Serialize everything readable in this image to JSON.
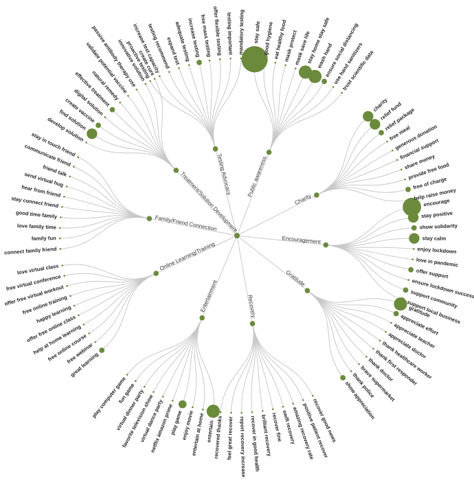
{
  "chart_data": {
    "type": "radial-tree",
    "root": "",
    "categories": [
      {
        "name": "Public awareness",
        "angle": -69,
        "children": [
          {
            "name": "stay safe",
            "value": 9
          },
          {
            "name": "good hygiene",
            "value": 1
          },
          {
            "name": "eat healthy food",
            "value": 0
          },
          {
            "name": "mask protect",
            "value": 0
          },
          {
            "name": "mask save life",
            "value": 0
          },
          {
            "name": "stay home stay safe",
            "value": 4
          },
          {
            "name": "wash hand",
            "value": 4
          },
          {
            "name": "ensure social distancing",
            "value": 1
          },
          {
            "name": "use hand sanitizers",
            "value": 0
          },
          {
            "name": "trust scientific data",
            "value": 0
          }
        ]
      },
      {
        "name": "Charity",
        "angle": -27,
        "children": [
          {
            "name": "charity",
            "value": 3
          },
          {
            "name": "relief fund",
            "value": 3
          },
          {
            "name": "relief package",
            "value": 1
          },
          {
            "name": "free meal",
            "value": 0
          },
          {
            "name": "generous donation",
            "value": 0
          },
          {
            "name": "financial support",
            "value": 0
          },
          {
            "name": "share money",
            "value": 0
          },
          {
            "name": "provide free food",
            "value": 0
          },
          {
            "name": "free of charge",
            "value": 1
          },
          {
            "name": "help raise money",
            "value": 0
          }
        ]
      },
      {
        "name": "Encouragement",
        "angle": 6,
        "children": [
          {
            "name": "encourage",
            "value": 6
          },
          {
            "name": "stay positive",
            "value": 3
          },
          {
            "name": "show solidarity",
            "value": 1
          },
          {
            "name": "stay calm",
            "value": 3
          },
          {
            "name": "enjoy lockdown",
            "value": 0
          },
          {
            "name": "love in pandemic",
            "value": 0
          },
          {
            "name": "offer support",
            "value": 1
          },
          {
            "name": "ensure lockdown success",
            "value": 0
          },
          {
            "name": "support community",
            "value": 1
          },
          {
            "name": "support local business",
            "value": 1
          }
        ]
      },
      {
        "name": "Gratitude",
        "angle": 38,
        "children": [
          {
            "name": "gratitude",
            "value": 4
          },
          {
            "name": "appreciate effort",
            "value": 1
          },
          {
            "name": "appreciate teacher",
            "value": 0
          },
          {
            "name": "appreciate doctor",
            "value": 0
          },
          {
            "name": "thank healthcare worker",
            "value": 0
          },
          {
            "name": "thank first responder",
            "value": 0
          },
          {
            "name": "thank doctor",
            "value": 0
          },
          {
            "name": "brave supermarket",
            "value": 0
          },
          {
            "name": "thank police",
            "value": 0
          },
          {
            "name": "show appreciation",
            "value": 1
          }
        ]
      },
      {
        "name": "Recovery",
        "angle": 80,
        "children": [
          {
            "name": "recover good news",
            "value": 0
          },
          {
            "name": "positive patient recover",
            "value": 0
          },
          {
            "name": "amazing recovery rate",
            "value": 0
          },
          {
            "name": "swift recovery",
            "value": 0
          },
          {
            "name": "recover fine",
            "value": 0
          },
          {
            "name": "brilliant recovery",
            "value": 0
          },
          {
            "name": "recover in good health",
            "value": 0
          },
          {
            "name": "report recovery increase",
            "value": 0
          },
          {
            "name": "feel great recover",
            "value": 0
          },
          {
            "name": "recovered thanks",
            "value": 0
          }
        ]
      },
      {
        "name": "Entertainment",
        "angle": 113,
        "children": [
          {
            "name": "entertain",
            "value": 4
          },
          {
            "name": "entertain at home",
            "value": 0
          },
          {
            "name": "enjoy movie",
            "value": 0
          },
          {
            "name": "play game",
            "value": 2
          },
          {
            "name": "netflix amazon prime",
            "value": 0
          },
          {
            "name": "virtual dance party",
            "value": 0
          },
          {
            "name": "favorite television show",
            "value": 0
          },
          {
            "name": "virtual dinner party",
            "value": 0
          },
          {
            "name": "fun game",
            "value": 0
          },
          {
            "name": "play computer game",
            "value": 0
          }
        ]
      },
      {
        "name": "Online Learning/Training",
        "angle": 155,
        "children": [
          {
            "name": "great learning",
            "value": 1
          },
          {
            "name": "free webinar",
            "value": 0
          },
          {
            "name": "free online course",
            "value": 0
          },
          {
            "name": "help at home learning",
            "value": 0
          },
          {
            "name": "offer free online class",
            "value": 0
          },
          {
            "name": "happy learning",
            "value": 0
          },
          {
            "name": "free online training",
            "value": 0
          },
          {
            "name": "offer free virtual workout",
            "value": 0
          },
          {
            "name": "free virtual conference",
            "value": 0
          },
          {
            "name": "love virtual class",
            "value": 0
          }
        ]
      },
      {
        "name": "Family/Friend Connection",
        "angle": 191,
        "children": [
          {
            "name": "connect family friend",
            "value": 0
          },
          {
            "name": "family fun",
            "value": 0
          },
          {
            "name": "love family time",
            "value": 0
          },
          {
            "name": "good time family",
            "value": 0
          },
          {
            "name": "stay connect friend",
            "value": 0
          },
          {
            "name": "hear from friend",
            "value": 0
          },
          {
            "name": "send virtual hug",
            "value": 0
          },
          {
            "name": "friend talk",
            "value": 0
          },
          {
            "name": "communicate friend",
            "value": 0
          },
          {
            "name": "stay in touch friend",
            "value": 0
          }
        ]
      },
      {
        "name": "Treatment/Solution Development",
        "angle": 227,
        "children": [
          {
            "name": "develop solution",
            "value": 0
          },
          {
            "name": "find solution",
            "value": 3
          },
          {
            "name": "create vaccine",
            "value": 1
          },
          {
            "name": "digital solution",
            "value": 0
          },
          {
            "name": "effective treatment",
            "value": 1
          },
          {
            "name": "natural remedy",
            "value": 0
          },
          {
            "name": "validate potential vaccine",
            "value": 0
          },
          {
            "name": "passive antibody therapy use",
            "value": 0
          },
          {
            "name": "innovative solution",
            "value": 0
          },
          {
            "name": "create cure",
            "value": 0
          }
        ]
      },
      {
        "name": "Testing Advocacy",
        "angle": 256,
        "children": [
          {
            "name": "proactive testing",
            "value": 0
          },
          {
            "name": "increase test capacity",
            "value": 0
          },
          {
            "name": "testing recommend",
            "value": 0
          },
          {
            "name": "expand test",
            "value": 0
          },
          {
            "name": "adequate testing",
            "value": 0
          },
          {
            "name": "increase testing",
            "value": 1
          },
          {
            "name": "free mass testing",
            "value": 0
          },
          {
            "name": "offer flexible testing",
            "value": 0
          },
          {
            "name": "testing important",
            "value": 0
          },
          {
            "name": "mandatory testing",
            "value": 0
          }
        ]
      }
    ]
  }
}
